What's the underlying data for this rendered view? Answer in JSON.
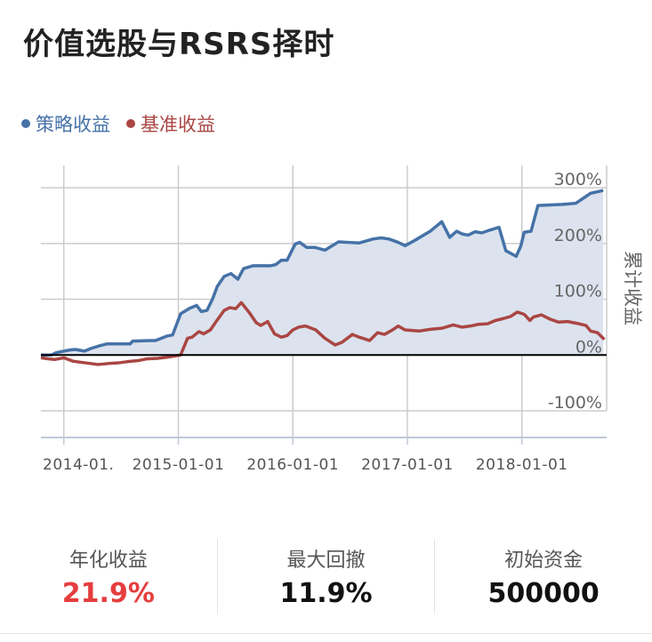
{
  "page": {
    "title": "价值选股与RSRS择时"
  },
  "colors": {
    "strategy": "#4572a7",
    "benchmark": "#aa4643",
    "area": "#dce3ee",
    "grid": "#cccccc",
    "zero_line": "#000000",
    "red_value": "#e53e3e"
  },
  "chart_data": {
    "type": "line",
    "title": "",
    "legend": [
      "策略收益",
      "基准收益"
    ],
    "legend_position": "top-left",
    "ylabel": "累计收益",
    "xlabel": "",
    "ylim": [
      -100,
      340
    ],
    "yticks": [
      -100,
      0,
      100,
      200,
      300
    ],
    "ytick_labels": [
      "-100%",
      "0%",
      "100%",
      "200%",
      "300%"
    ],
    "xlim": [
      2013.8,
      2018.74
    ],
    "xticks": [
      2014.0,
      2015.0,
      2016.0,
      2017.0,
      2018.0
    ],
    "xtick_labels": [
      "2014-01.",
      "2015-01-01",
      "2016-01-01",
      "2017-01-01",
      "2018-01-01"
    ],
    "series": [
      {
        "name": "策略收益",
        "x": [
          2013.8,
          2013.89,
          2013.93,
          2014.05,
          2014.1,
          2014.18,
          2014.24,
          2014.32,
          2014.38,
          2014.5,
          2014.58,
          2014.6,
          2014.75,
          2014.8,
          2014.9,
          2014.95,
          2015.02,
          2015.1,
          2015.16,
          2015.2,
          2015.25,
          2015.3,
          2015.34,
          2015.4,
          2015.46,
          2015.52,
          2015.57,
          2015.65,
          2015.7,
          2015.8,
          2015.85,
          2015.9,
          2015.95,
          2016.02,
          2016.06,
          2016.12,
          2016.19,
          2016.28,
          2016.4,
          2016.48,
          2016.58,
          2016.7,
          2016.77,
          2016.84,
          2016.92,
          2016.98,
          2017.06,
          2017.2,
          2017.3,
          2017.37,
          2017.43,
          2017.48,
          2017.53,
          2017.59,
          2017.65,
          2017.72,
          2017.8,
          2017.86,
          2017.95,
          2017.99,
          2018.02,
          2018.08,
          2018.14,
          2018.35,
          2018.47,
          2018.6,
          2018.71
        ],
        "values": [
          0,
          0,
          4,
          9,
          10,
          7,
          12,
          17,
          20,
          20,
          20,
          25,
          26,
          26,
          34,
          36,
          74,
          84,
          89,
          78,
          80,
          101,
          123,
          141,
          146,
          136,
          155,
          160,
          160,
          160,
          162,
          170,
          170,
          199,
          202,
          193,
          193,
          188,
          203,
          202,
          201,
          208,
          210,
          208,
          202,
          196,
          205,
          222,
          239,
          211,
          222,
          217,
          215,
          221,
          219,
          224,
          229,
          187,
          177,
          195,
          220,
          222,
          268,
          270,
          272,
          290,
          295
        ],
        "yseries": [
          0,
          0,
          4,
          9,
          10,
          7,
          12,
          17,
          20,
          20,
          20,
          25,
          26,
          26,
          34,
          36,
          74,
          84,
          89,
          78,
          80,
          101,
          123,
          141,
          146,
          136,
          155,
          160,
          160,
          160,
          162,
          170,
          170,
          199,
          202,
          193,
          193,
          188,
          203,
          202,
          201,
          208,
          210,
          208,
          202,
          196,
          205,
          222,
          239,
          211,
          222,
          217,
          215,
          221,
          219,
          224,
          229,
          187,
          177,
          195,
          220,
          222,
          268,
          270,
          272,
          290,
          295
        ]
      },
      {
        "name": "基准收益",
        "x": [
          2013.8,
          2013.87,
          2013.92,
          2014.0,
          2014.08,
          2014.15,
          2014.3,
          2014.4,
          2014.48,
          2014.55,
          2014.65,
          2014.72,
          2014.82,
          2014.9,
          2014.96,
          2015.02,
          2015.08,
          2015.12,
          2015.18,
          2015.22,
          2015.28,
          2015.33,
          2015.4,
          2015.45,
          2015.5,
          2015.55,
          2015.62,
          2015.68,
          2015.72,
          2015.78,
          2015.84,
          2015.9,
          2015.95,
          2016.0,
          2016.05,
          2016.11,
          2016.2,
          2016.28,
          2016.37,
          2016.43,
          2016.52,
          2016.58,
          2016.67,
          2016.74,
          2016.8,
          2016.87,
          2016.92,
          2016.98,
          2017.1,
          2017.2,
          2017.3,
          2017.4,
          2017.48,
          2017.55,
          2017.62,
          2017.7,
          2017.77,
          2017.83,
          2017.9,
          2017.96,
          2018.02,
          2018.07,
          2018.1,
          2018.17,
          2018.25,
          2018.32,
          2018.4,
          2018.5,
          2018.56,
          2018.6,
          2018.66,
          2018.72
        ],
        "values": [
          -5,
          -7,
          -8,
          -5,
          -11,
          -13,
          -17,
          -15,
          -14,
          -12,
          -10,
          -7,
          -6,
          -4,
          -2,
          0,
          30,
          32,
          42,
          38,
          45,
          60,
          80,
          85,
          83,
          94,
          76,
          58,
          53,
          60,
          38,
          32,
          35,
          45,
          50,
          52,
          45,
          30,
          18,
          23,
          37,
          32,
          26,
          40,
          37,
          45,
          52,
          45,
          43,
          46,
          48,
          54,
          50,
          52,
          55,
          56,
          62,
          65,
          69,
          77,
          73,
          62,
          68,
          72,
          64,
          59,
          60,
          56,
          53,
          43,
          40,
          28
        ],
        "yseries": [
          -5,
          -7,
          -8,
          -5,
          -11,
          -13,
          -17,
          -15,
          -14,
          -12,
          -10,
          -7,
          -6,
          -4,
          -2,
          0,
          30,
          32,
          42,
          38,
          45,
          60,
          80,
          85,
          83,
          94,
          76,
          58,
          53,
          60,
          38,
          32,
          35,
          45,
          50,
          52,
          45,
          30,
          18,
          23,
          37,
          32,
          26,
          40,
          37,
          45,
          52,
          45,
          43,
          46,
          48,
          54,
          50,
          52,
          55,
          56,
          62,
          65,
          69,
          77,
          73,
          62,
          68,
          72,
          64,
          59,
          60,
          56,
          53,
          43,
          40,
          28
        ]
      }
    ]
  },
  "stats": [
    {
      "label": "年化收益",
      "value": "21.9%"
    },
    {
      "label": "最大回撤",
      "value": "11.9%"
    },
    {
      "label": "初始资金",
      "value": "500000"
    }
  ]
}
